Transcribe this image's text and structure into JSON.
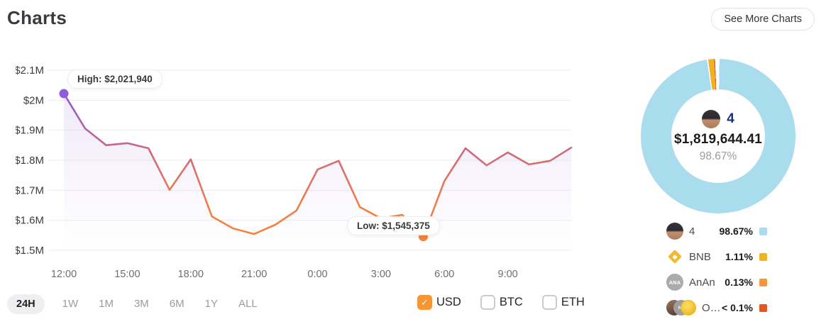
{
  "header": {
    "title": "Charts",
    "see_more_label": "See More Charts"
  },
  "ranges": {
    "options": [
      "24H",
      "1W",
      "1M",
      "3M",
      "6M",
      "1Y",
      "ALL"
    ],
    "active": "24H"
  },
  "currencies": [
    {
      "label": "USD",
      "checked": true
    },
    {
      "label": "BTC",
      "checked": false
    },
    {
      "label": "ETH",
      "checked": false
    }
  ],
  "colors": {
    "line_gradient_top": "#8a57d7",
    "line_gradient_mid": "#cf6a79",
    "line_gradient_bottom": "#f6853e",
    "high_dot": "#8f5ddb",
    "low_dot": "#f6823c",
    "area_fill": "#9a6fd8",
    "grid": "#ececf1",
    "checkbox_checked": "#f79433"
  },
  "chart_data": [
    {
      "type": "line",
      "x": [
        "12:00",
        "13:00",
        "14:00",
        "15:00",
        "16:00",
        "17:00",
        "18:00",
        "19:00",
        "20:00",
        "21:00",
        "22:00",
        "23:00",
        "0:00",
        "1:00",
        "2:00",
        "3:00",
        "4:00",
        "5:00",
        "6:00",
        "7:00",
        "8:00",
        "9:00",
        "10:00",
        "11:00",
        "11:45"
      ],
      "values": [
        2021940,
        1906000,
        1850000,
        1857000,
        1840000,
        1701000,
        1803000,
        1613000,
        1573000,
        1554000,
        1585000,
        1632000,
        1769000,
        1798000,
        1644000,
        1606000,
        1618000,
        1545375,
        1731000,
        1840000,
        1783000,
        1826000,
        1786000,
        1798000,
        1842000
      ],
      "ylim": [
        1500000,
        2100000
      ],
      "yticks": [
        {
          "label": "$2.1M",
          "value": 2100000
        },
        {
          "label": "$2M",
          "value": 2000000
        },
        {
          "label": "$1.9M",
          "value": 1900000
        },
        {
          "label": "$1.8M",
          "value": 1800000
        },
        {
          "label": "$1.7M",
          "value": 1700000
        },
        {
          "label": "$1.6M",
          "value": 1600000
        },
        {
          "label": "$1.5M",
          "value": 1500000
        }
      ],
      "xticks": [
        "12:00",
        "15:00",
        "18:00",
        "21:00",
        "0:00",
        "3:00",
        "6:00",
        "9:00"
      ],
      "high": {
        "label": "High: $2,021,940",
        "value": 2021940,
        "index": 0
      },
      "low": {
        "label": "Low: $1,545,375",
        "value": 1545375,
        "index": 17
      },
      "grid": "horizontal",
      "legend_position": "none"
    },
    {
      "type": "donut",
      "slices": [
        {
          "name": "4",
          "pct_label": "98.67%",
          "value": 98.67,
          "color": "#a9dcec",
          "icon": "photo"
        },
        {
          "name": "BNB",
          "pct_label": "1.11%",
          "value": 1.11,
          "color": "#efb220",
          "icon": "bnb"
        },
        {
          "name": "AnAn",
          "pct_label": "0.13%",
          "value": 0.13,
          "color": "#f6953e",
          "icon": "ana"
        },
        {
          "name": "O…",
          "pct_label": "< 0.1%",
          "value": 0.09,
          "color": "#e2571d",
          "icon": "group"
        }
      ],
      "center": {
        "count": "4",
        "amount": "$1,819,644.41",
        "pct": "98.67%"
      },
      "legend_position": "bottom"
    }
  ]
}
